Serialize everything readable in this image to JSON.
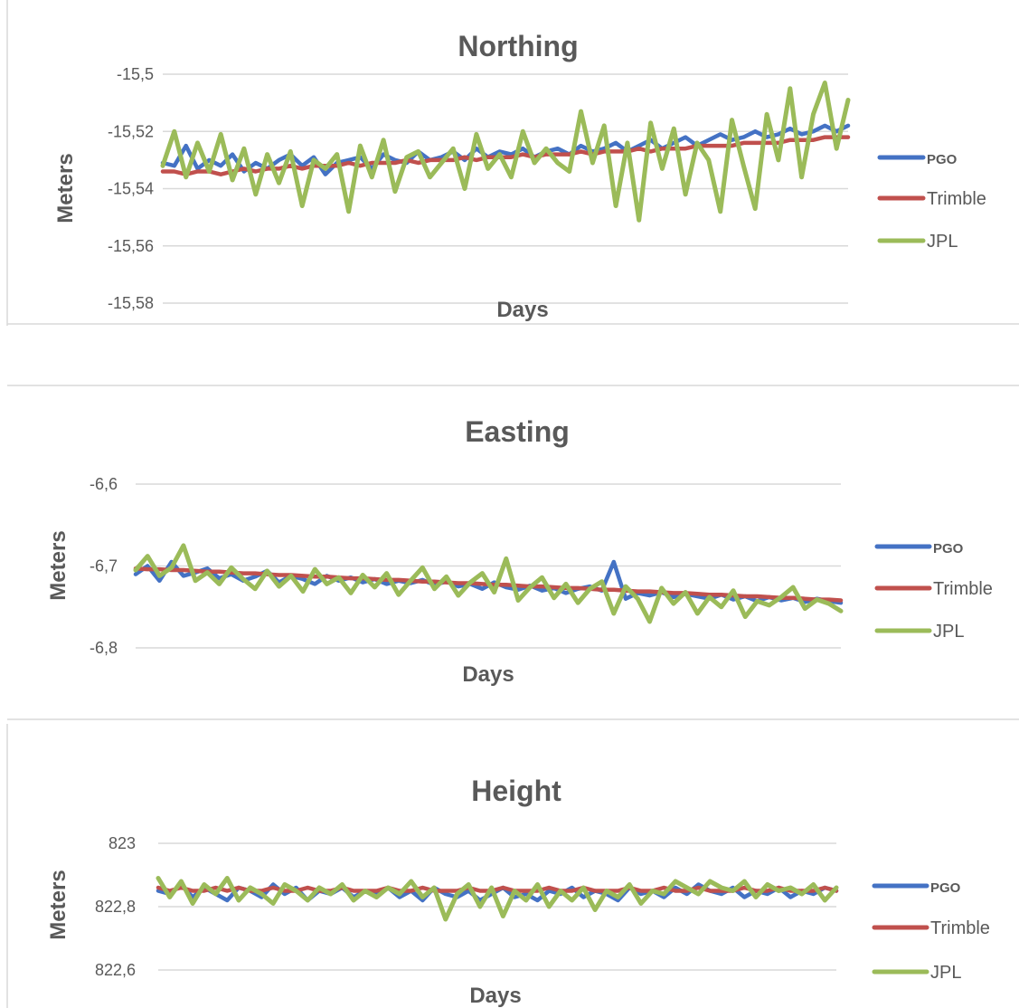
{
  "colors": {
    "PGO": "#4472C4",
    "Trimble": "#C0504D",
    "JPL": "#9BBB59",
    "grid": "#D9D9D9",
    "text": "#595959"
  },
  "chart_data": [
    {
      "type": "line",
      "title": "Northing",
      "xlabel": "Days",
      "ylabel": "Meters",
      "ylim": [
        -15.58,
        -15.5
      ],
      "yticks": [
        -15.5,
        -15.52,
        -15.54,
        -15.56,
        -15.58
      ],
      "ytick_labels": [
        "-15,5",
        "-15,52",
        "-15,54",
        "-15,56",
        "-15,58"
      ],
      "grid": true,
      "legend": "right",
      "series": [
        {
          "name": "PGO",
          "values": [
            -15.531,
            -15.532,
            -15.525,
            -15.533,
            -15.53,
            -15.532,
            -15.528,
            -15.534,
            -15.531,
            -15.533,
            -15.53,
            -15.528,
            -15.532,
            -15.529,
            -15.535,
            -15.531,
            -15.53,
            -15.529,
            -15.533,
            -15.528,
            -15.53,
            -15.531,
            -15.527,
            -15.53,
            -15.529,
            -15.527,
            -15.53,
            -15.526,
            -15.529,
            -15.527,
            -15.528,
            -15.526,
            -15.529,
            -15.527,
            -15.526,
            -15.528,
            -15.525,
            -15.527,
            -15.526,
            -15.524,
            -15.527,
            -15.525,
            -15.523,
            -15.526,
            -15.524,
            -15.522,
            -15.525,
            -15.523,
            -15.521,
            -15.523,
            -15.522,
            -15.52,
            -15.522,
            -15.521,
            -15.519,
            -15.521,
            -15.52,
            -15.518,
            -15.52,
            -15.518
          ]
        },
        {
          "name": "Trimble",
          "values": [
            -15.534,
            -15.534,
            -15.535,
            -15.534,
            -15.534,
            -15.535,
            -15.534,
            -15.533,
            -15.534,
            -15.533,
            -15.533,
            -15.532,
            -15.533,
            -15.532,
            -15.532,
            -15.532,
            -15.531,
            -15.532,
            -15.531,
            -15.531,
            -15.531,
            -15.53,
            -15.531,
            -15.53,
            -15.53,
            -15.53,
            -15.529,
            -15.53,
            -15.529,
            -15.529,
            -15.529,
            -15.528,
            -15.529,
            -15.528,
            -15.528,
            -15.528,
            -15.527,
            -15.528,
            -15.527,
            -15.527,
            -15.527,
            -15.526,
            -15.527,
            -15.526,
            -15.526,
            -15.526,
            -15.525,
            -15.525,
            -15.525,
            -15.525,
            -15.524,
            -15.524,
            -15.524,
            -15.524,
            -15.523,
            -15.523,
            -15.523,
            -15.522,
            -15.522,
            -15.522
          ]
        },
        {
          "name": "JPL",
          "values": [
            -15.532,
            -15.52,
            -15.536,
            -15.524,
            -15.534,
            -15.521,
            -15.537,
            -15.526,
            -15.542,
            -15.528,
            -15.538,
            -15.527,
            -15.546,
            -15.53,
            -15.533,
            -15.528,
            -15.548,
            -15.525,
            -15.536,
            -15.523,
            -15.541,
            -15.529,
            -15.527,
            -15.536,
            -15.531,
            -15.526,
            -15.54,
            -15.521,
            -15.533,
            -15.528,
            -15.536,
            -15.52,
            -15.531,
            -15.526,
            -15.531,
            -15.534,
            -15.513,
            -15.531,
            -15.518,
            -15.546,
            -15.524,
            -15.551,
            -15.517,
            -15.533,
            -15.519,
            -15.542,
            -15.524,
            -15.53,
            -15.548,
            -15.516,
            -15.532,
            -15.547,
            -15.514,
            -15.53,
            -15.505,
            -15.536,
            -15.514,
            -15.503,
            -15.526,
            -15.509
          ]
        }
      ]
    },
    {
      "type": "line",
      "title": "Easting",
      "xlabel": "Days",
      "ylabel": "Meters",
      "ylim": [
        -6.8,
        -6.6
      ],
      "yticks": [
        -6.6,
        -6.7,
        -6.8
      ],
      "ytick_labels": [
        "-6,6",
        "-6,7",
        "-6,8"
      ],
      "grid": true,
      "legend": "right",
      "series": [
        {
          "name": "PGO",
          "values": [
            -6.71,
            -6.7,
            -6.718,
            -6.695,
            -6.712,
            -6.708,
            -6.703,
            -6.715,
            -6.71,
            -6.718,
            -6.713,
            -6.706,
            -6.72,
            -6.712,
            -6.716,
            -6.722,
            -6.712,
            -6.718,
            -6.714,
            -6.72,
            -6.716,
            -6.722,
            -6.718,
            -6.721,
            -6.717,
            -6.723,
            -6.719,
            -6.725,
            -6.722,
            -6.728,
            -6.72,
            -6.726,
            -6.729,
            -6.724,
            -6.73,
            -6.727,
            -6.733,
            -6.728,
            -6.725,
            -6.73,
            -6.695,
            -6.74,
            -6.733,
            -6.736,
            -6.732,
            -6.738,
            -6.734,
            -6.737,
            -6.74,
            -6.735,
            -6.741,
            -6.737,
            -6.743,
            -6.738,
            -6.742,
            -6.739,
            -6.744,
            -6.74,
            -6.743,
            -6.745
          ]
        },
        {
          "name": "Trimble",
          "values": [
            -6.703,
            -6.704,
            -6.704,
            -6.705,
            -6.705,
            -6.706,
            -6.707,
            -6.707,
            -6.708,
            -6.709,
            -6.709,
            -6.71,
            -6.711,
            -6.711,
            -6.712,
            -6.713,
            -6.713,
            -6.714,
            -6.715,
            -6.715,
            -6.716,
            -6.717,
            -6.717,
            -6.718,
            -6.719,
            -6.719,
            -6.72,
            -6.721,
            -6.721,
            -6.722,
            -6.723,
            -6.723,
            -6.724,
            -6.725,
            -6.725,
            -6.726,
            -6.727,
            -6.727,
            -6.728,
            -6.729,
            -6.729,
            -6.73,
            -6.731,
            -6.731,
            -6.732,
            -6.733,
            -6.733,
            -6.734,
            -6.735,
            -6.735,
            -6.736,
            -6.737,
            -6.737,
            -6.738,
            -6.739,
            -6.739,
            -6.74,
            -6.741,
            -6.741,
            -6.742
          ]
        },
        {
          "name": "JPL",
          "values": [
            -6.705,
            -6.688,
            -6.712,
            -6.702,
            -6.675,
            -6.718,
            -6.708,
            -6.722,
            -6.702,
            -6.716,
            -6.728,
            -6.706,
            -6.725,
            -6.712,
            -6.731,
            -6.704,
            -6.722,
            -6.714,
            -6.733,
            -6.711,
            -6.726,
            -6.709,
            -6.735,
            -6.718,
            -6.702,
            -6.728,
            -6.713,
            -6.736,
            -6.72,
            -6.709,
            -6.732,
            -6.691,
            -6.742,
            -6.726,
            -6.714,
            -6.739,
            -6.722,
            -6.745,
            -6.728,
            -6.719,
            -6.758,
            -6.725,
            -6.74,
            -6.768,
            -6.727,
            -6.746,
            -6.732,
            -6.758,
            -6.738,
            -6.75,
            -6.73,
            -6.762,
            -6.743,
            -6.748,
            -6.738,
            -6.726,
            -6.752,
            -6.741,
            -6.746,
            -6.755
          ]
        }
      ]
    },
    {
      "type": "line",
      "title": "Height",
      "xlabel": "Days",
      "ylabel": "Meters",
      "ylim": [
        822.6,
        823.0
      ],
      "yticks": [
        823.0,
        822.8,
        822.6
      ],
      "ytick_labels": [
        "823",
        "822,8",
        "822,6"
      ],
      "grid": true,
      "legend": "right",
      "series": [
        {
          "name": "PGO",
          "values": [
            822.85,
            822.84,
            822.87,
            822.83,
            822.86,
            822.84,
            822.82,
            822.86,
            822.85,
            822.83,
            822.87,
            822.84,
            822.86,
            822.82,
            822.85,
            822.84,
            822.86,
            822.83,
            822.85,
            822.84,
            822.86,
            822.83,
            822.85,
            822.82,
            822.86,
            822.84,
            822.83,
            822.85,
            822.82,
            822.84,
            822.86,
            822.83,
            822.84,
            822.82,
            822.85,
            822.84,
            822.86,
            822.83,
            822.85,
            822.84,
            822.82,
            822.86,
            822.84,
            822.85,
            822.83,
            822.86,
            822.84,
            822.87,
            822.85,
            822.84,
            822.86,
            822.83,
            822.85,
            822.84,
            822.86,
            822.83,
            822.85,
            822.84,
            822.86,
            822.85
          ]
        },
        {
          "name": "Trimble",
          "values": [
            822.86,
            822.85,
            822.86,
            822.85,
            822.85,
            822.86,
            822.85,
            822.86,
            822.85,
            822.85,
            822.86,
            822.85,
            822.85,
            822.86,
            822.85,
            822.85,
            822.86,
            822.85,
            822.85,
            822.85,
            822.86,
            822.85,
            822.85,
            822.86,
            822.85,
            822.85,
            822.85,
            822.86,
            822.85,
            822.85,
            822.86,
            822.85,
            822.85,
            822.85,
            822.86,
            822.85,
            822.85,
            822.86,
            822.85,
            822.85,
            822.85,
            822.86,
            822.85,
            822.85,
            822.86,
            822.85,
            822.85,
            822.86,
            822.85,
            822.85,
            822.85,
            822.86,
            822.85,
            822.85,
            822.86,
            822.85,
            822.85,
            822.85,
            822.86,
            822.85
          ]
        },
        {
          "name": "JPL",
          "values": [
            822.89,
            822.83,
            822.88,
            822.81,
            822.87,
            822.84,
            822.89,
            822.82,
            822.86,
            822.84,
            822.81,
            822.87,
            822.85,
            822.82,
            822.86,
            822.84,
            822.87,
            822.82,
            822.85,
            822.83,
            822.86,
            822.84,
            822.88,
            822.83,
            822.86,
            822.76,
            822.84,
            822.87,
            822.8,
            822.86,
            822.77,
            822.85,
            822.82,
            822.87,
            822.8,
            822.85,
            822.82,
            822.86,
            822.79,
            822.85,
            822.83,
            822.87,
            822.81,
            822.85,
            822.84,
            822.88,
            822.86,
            822.84,
            822.88,
            822.86,
            822.85,
            822.88,
            822.83,
            822.87,
            822.85,
            822.86,
            822.84,
            822.87,
            822.82,
            822.86
          ]
        }
      ]
    }
  ]
}
